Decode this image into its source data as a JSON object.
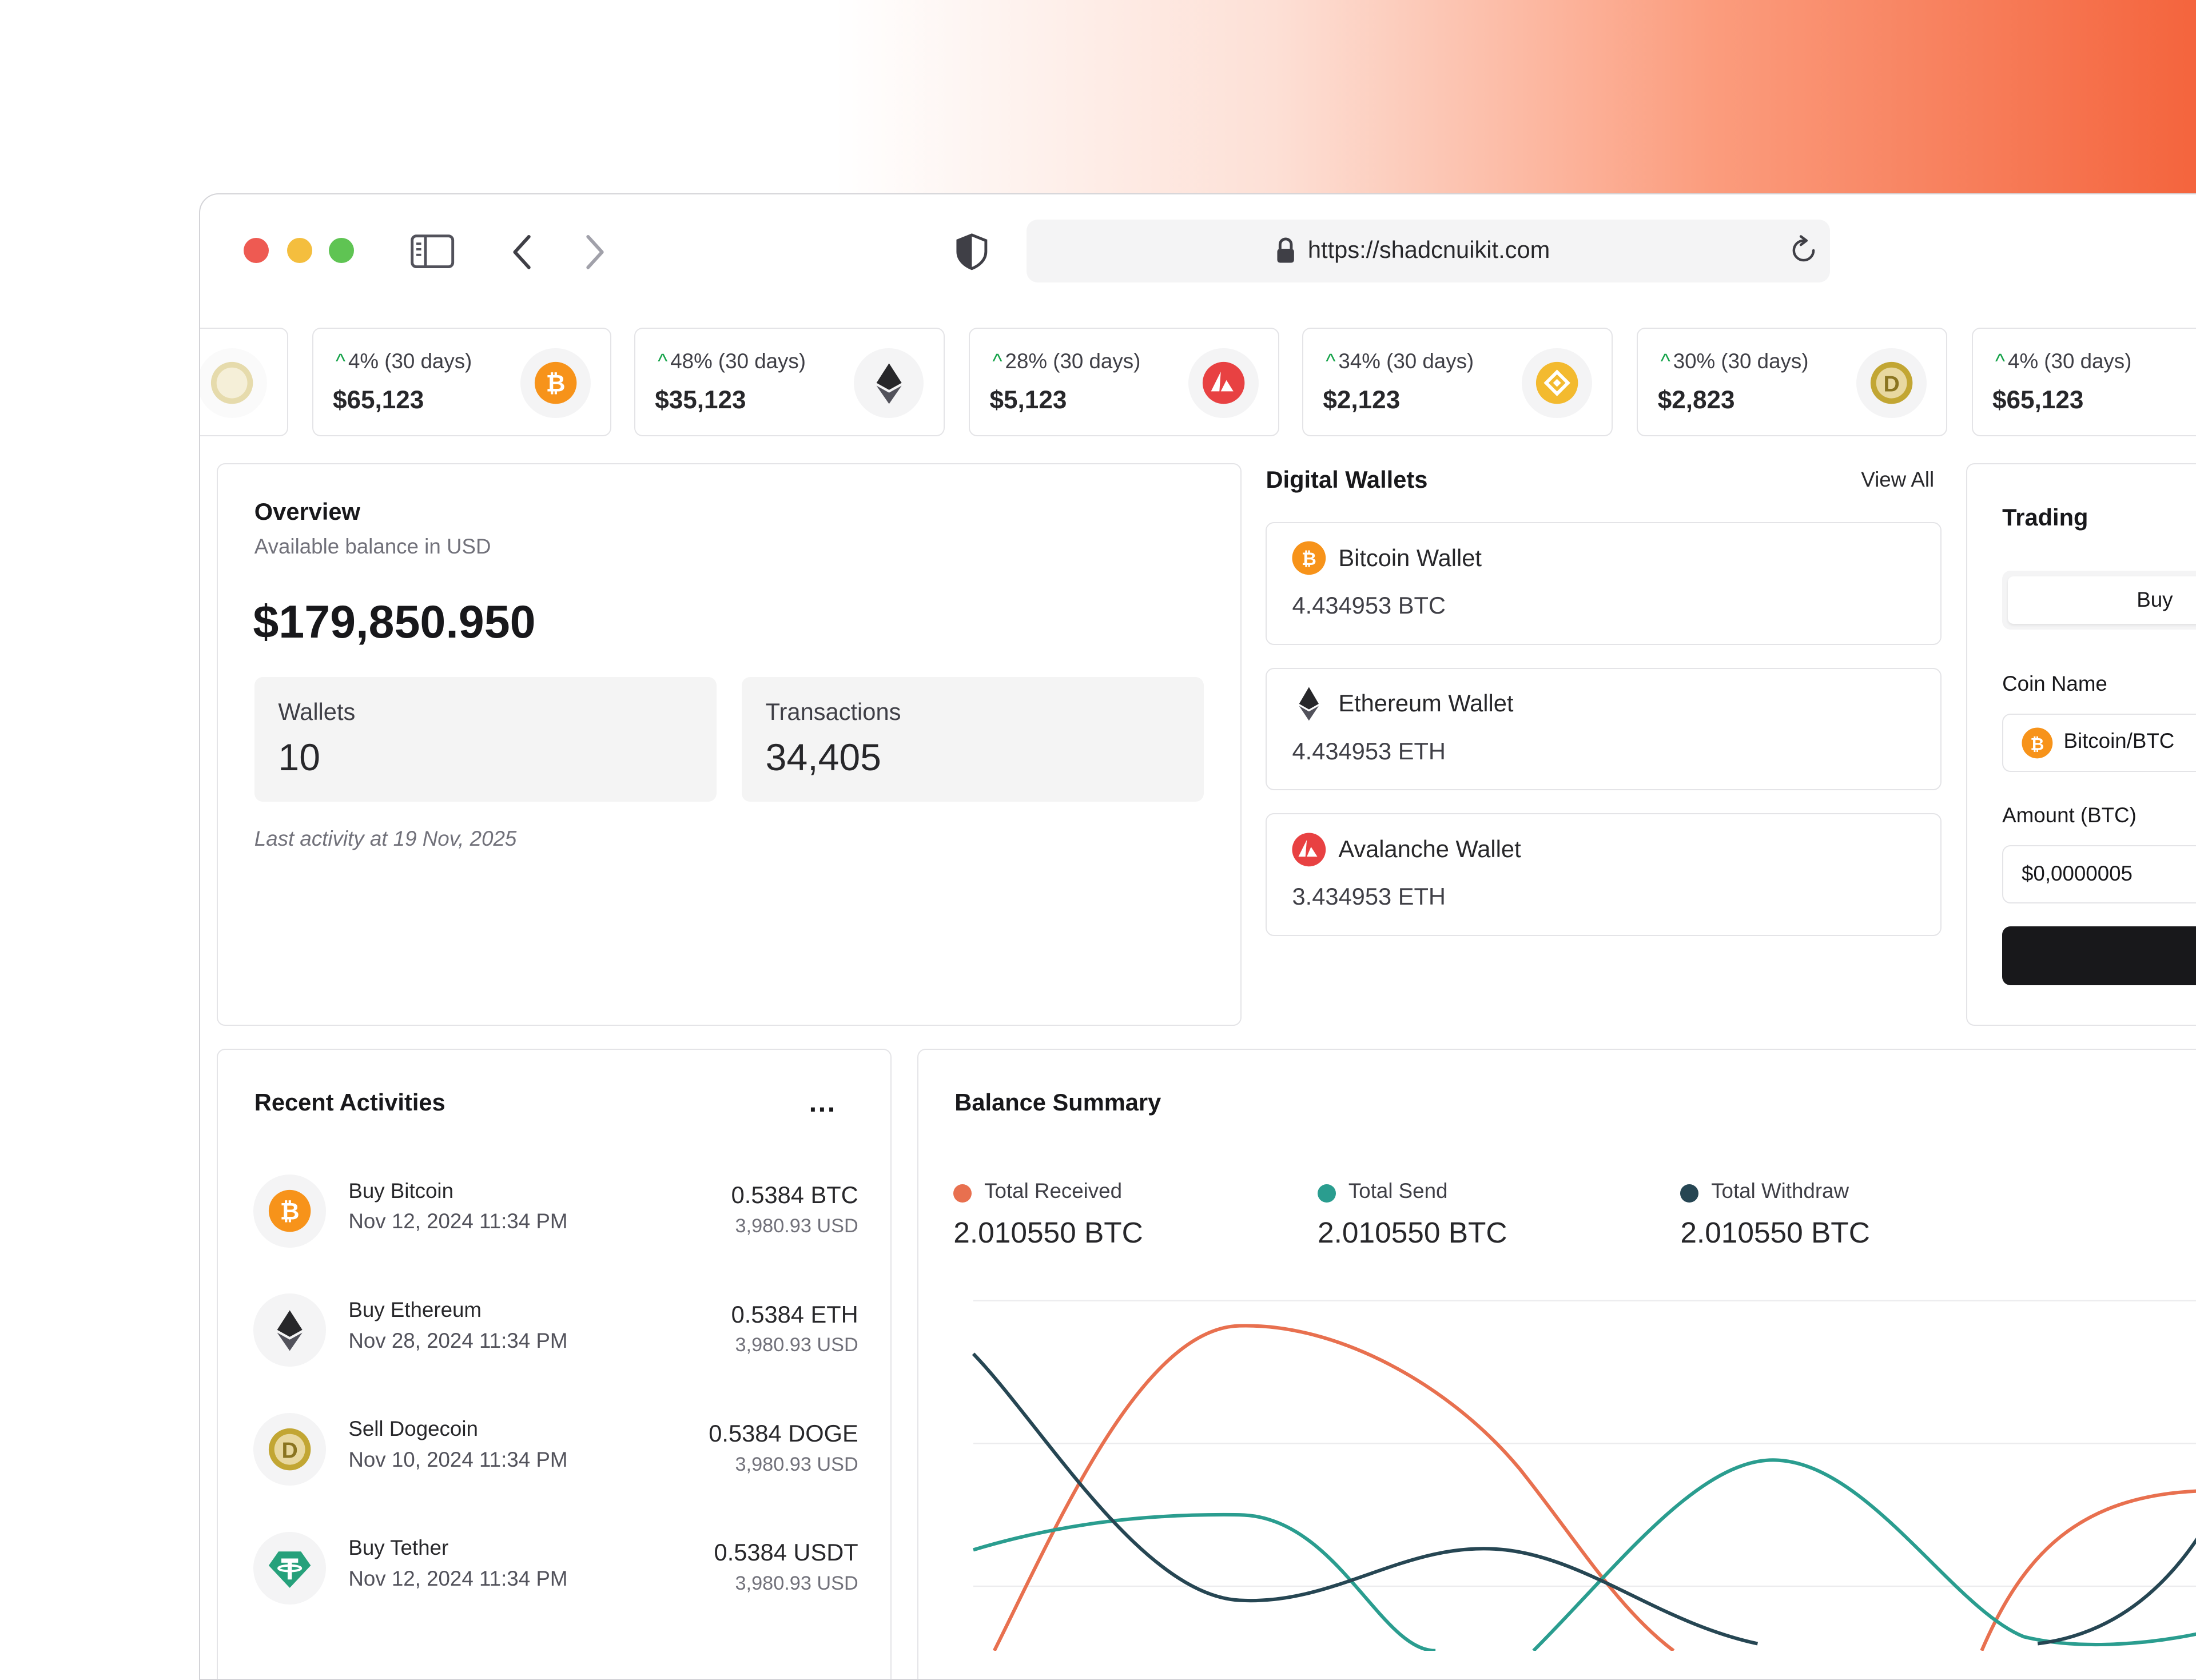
{
  "browser": {
    "url": "https://shadcnuikit.com"
  },
  "ticker": [
    {
      "change": "4% (30 days)",
      "price": "$65,123",
      "icon": "bitcoin-icon"
    },
    {
      "change": "48% (30 days)",
      "price": "$35,123",
      "icon": "ethereum-icon"
    },
    {
      "change": "28% (30 days)",
      "price": "$5,123",
      "icon": "avalanche-icon"
    },
    {
      "change": "34% (30 days)",
      "price": "$2,123",
      "icon": "bnb-icon"
    },
    {
      "change": "30% (30 days)",
      "price": "$2,823",
      "icon": "dogecoin-icon"
    },
    {
      "change": "4% (30 days)",
      "price": "$65,123",
      "icon": "bitcoin-icon"
    }
  ],
  "overview": {
    "title": "Overview",
    "subtitle": "Available balance in USD",
    "balance": "$179,850.950",
    "wallets_label": "Wallets",
    "wallets_value": "10",
    "transactions_label": "Transactions",
    "transactions_value": "34,405",
    "last_activity": "Last activity at 19 Nov, 2025"
  },
  "digital_wallets": {
    "title": "Digital Wallets",
    "view_all": "View All",
    "items": [
      {
        "name": "Bitcoin Wallet",
        "amount": "4.434953 BTC"
      },
      {
        "name": "Ethereum Wallet",
        "amount": "4.434953 ETH"
      },
      {
        "name": "Avalanche Wallet",
        "amount": "3.434953 ETH"
      }
    ]
  },
  "trading": {
    "title": "Trading",
    "tab_buy": "Buy",
    "coin_label": "Coin Name",
    "coin_value": "Bitcoin/BTC",
    "amount_label": "Amount (BTC)",
    "amount_value": "$0,0000005"
  },
  "recent_activities": {
    "title": "Recent Activities",
    "more": "...",
    "items": [
      {
        "title": "Buy Bitcoin",
        "date": "Nov 12, 2024 11:34 PM",
        "amount": "0.5384 BTC",
        "usd": "3,980.93 USD"
      },
      {
        "title": "Buy Ethereum",
        "date": "Nov 28, 2024 11:34 PM",
        "amount": "0.5384 ETH",
        "usd": "3,980.93 USD"
      },
      {
        "title": "Sell Dogecoin",
        "date": "Nov 10, 2024 11:34 PM",
        "amount": "0.5384 DOGE",
        "usd": "3,980.93 USD"
      },
      {
        "title": "Buy Tether",
        "date": "Nov 12, 2024 11:34 PM",
        "amount": "0.5384 USDT",
        "usd": "3,980.93 USD"
      }
    ]
  },
  "balance_summary": {
    "title": "Balance Summary",
    "legend": [
      {
        "name": "Total Received",
        "value": "2.010550 BTC",
        "color": "#e8704f"
      },
      {
        "name": "Total Send",
        "value": "2.010550 BTC",
        "color": "#2a9d8f"
      },
      {
        "name": "Total Withdraw",
        "value": "2.010550 BTC",
        "color": "#264653"
      }
    ]
  },
  "colors": {
    "bitcoin": "#f7931a",
    "avalanche": "#e84142",
    "bnb": "#f3ba2f",
    "dogecoin": "#c2a633",
    "tether": "#26a17b",
    "positive": "#16a34a"
  }
}
